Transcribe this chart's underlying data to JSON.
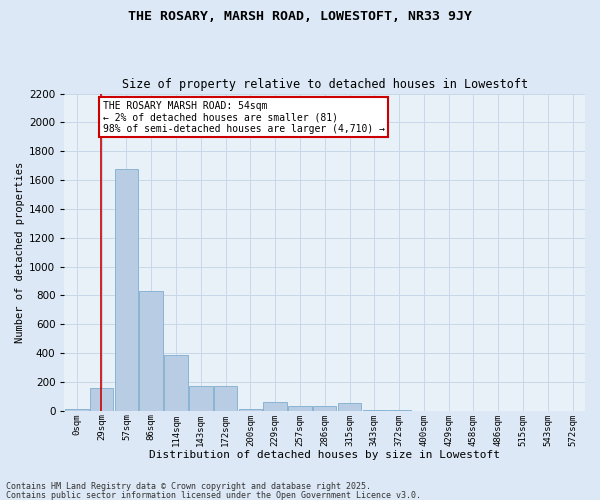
{
  "title1": "THE ROSARY, MARSH ROAD, LOWESTOFT, NR33 9JY",
  "title2": "Size of property relative to detached houses in Lowestoft",
  "xlabel": "Distribution of detached houses by size in Lowestoft",
  "ylabel": "Number of detached properties",
  "categories": [
    "0sqm",
    "29sqm",
    "57sqm",
    "86sqm",
    "114sqm",
    "143sqm",
    "172sqm",
    "200sqm",
    "229sqm",
    "257sqm",
    "286sqm",
    "315sqm",
    "343sqm",
    "372sqm",
    "400sqm",
    "429sqm",
    "458sqm",
    "486sqm",
    "515sqm",
    "543sqm",
    "572sqm"
  ],
  "values": [
    10,
    160,
    1680,
    830,
    390,
    175,
    175,
    10,
    60,
    30,
    30,
    55,
    5,
    5,
    0,
    0,
    0,
    0,
    0,
    0,
    0
  ],
  "bar_color": "#b8cce4",
  "bar_edge_color": "#8ab4d4",
  "grid_color": "#c8d8e8",
  "bg_color": "#e8f0f8",
  "fig_bg_color": "#dce8f5",
  "vline_color": "#cc0000",
  "vline_x": 0.97,
  "annotation_text": "THE ROSARY MARSH ROAD: 54sqm\n← 2% of detached houses are smaller (81)\n98% of semi-detached houses are larger (4,710) →",
  "annotation_box_color": "#cc0000",
  "ylim": [
    0,
    2200
  ],
  "yticks": [
    0,
    200,
    400,
    600,
    800,
    1000,
    1200,
    1400,
    1600,
    1800,
    2000,
    2200
  ],
  "footnote1": "Contains HM Land Registry data © Crown copyright and database right 2025.",
  "footnote2": "Contains public sector information licensed under the Open Government Licence v3.0."
}
